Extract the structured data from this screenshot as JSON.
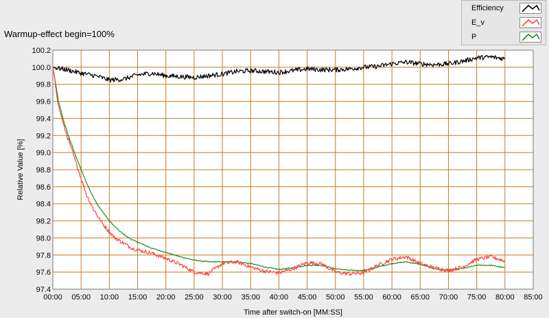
{
  "chart_data": {
    "type": "line",
    "title": "Warmup-effect begin=100%",
    "xlabel": "Time after switch-on [MM:SS]",
    "ylabel": "Relative Value [%]",
    "xlim": [
      0,
      85
    ],
    "ylim": [
      97.4,
      100.2
    ],
    "x_ticks": [
      0,
      5,
      10,
      15,
      20,
      25,
      30,
      35,
      40,
      45,
      50,
      55,
      60,
      65,
      70,
      75,
      80,
      85
    ],
    "x_tick_labels": [
      "00:00",
      "05:00",
      "10:00",
      "15:00",
      "20:00",
      "25:00",
      "30:00",
      "35:00",
      "40:00",
      "45:00",
      "50:00",
      "55:00",
      "60:00",
      "65:00",
      "70:00",
      "75:00",
      "80:00",
      "85:00"
    ],
    "y_ticks": [
      97.4,
      97.6,
      97.8,
      98.0,
      98.2,
      98.4,
      98.6,
      98.8,
      99.0,
      99.2,
      99.4,
      99.6,
      99.8,
      100.0,
      100.2
    ],
    "y_tick_labels": [
      "97.4",
      "97.6",
      "97.8",
      "98.0",
      "98.2",
      "98.4",
      "98.6",
      "98.8",
      "99.0",
      "99.2",
      "99.4",
      "99.6",
      "99.8",
      "100.0",
      "100.2"
    ],
    "grid": true,
    "legend_position": "top-right",
    "background_color": "#ffffff",
    "grid_color": "#c8781e",
    "series": [
      {
        "name": "Efficiency",
        "color": "#000000",
        "x": [
          0,
          2.5,
          5,
          7.5,
          10,
          12.5,
          15,
          17.5,
          20,
          22.5,
          25,
          27.5,
          30,
          32.5,
          35,
          37.5,
          40,
          42.5,
          45,
          47.5,
          50,
          52.5,
          55,
          57.5,
          60,
          62.5,
          65,
          67.5,
          70,
          72.5,
          75,
          77.5,
          80
        ],
        "y": [
          100.0,
          99.97,
          99.93,
          99.9,
          99.85,
          99.86,
          99.91,
          99.93,
          99.9,
          99.89,
          99.88,
          99.9,
          99.92,
          99.95,
          99.96,
          99.95,
          99.94,
          99.96,
          99.98,
          99.97,
          99.97,
          99.98,
          100.0,
          100.01,
          100.04,
          100.06,
          100.04,
          100.03,
          100.04,
          100.07,
          100.11,
          100.12,
          100.1
        ]
      },
      {
        "name": "E_v",
        "color": "#ff4040",
        "x": [
          0,
          1,
          2,
          3,
          4,
          5,
          6,
          7,
          8,
          9,
          10,
          11,
          12,
          13,
          14,
          15,
          17.5,
          20,
          22.5,
          25,
          27.5,
          30,
          32.5,
          35,
          37.5,
          40,
          42.5,
          45,
          47.5,
          50,
          52.5,
          55,
          57.5,
          60,
          62.5,
          65,
          67.5,
          70,
          72.5,
          75,
          77.5,
          80
        ],
        "y": [
          100.0,
          99.55,
          99.3,
          99.1,
          98.9,
          98.7,
          98.5,
          98.36,
          98.25,
          98.15,
          98.07,
          98.0,
          97.96,
          97.92,
          97.88,
          97.86,
          97.82,
          97.76,
          97.69,
          97.6,
          97.58,
          97.7,
          97.72,
          97.66,
          97.61,
          97.59,
          97.64,
          97.71,
          97.7,
          97.6,
          97.58,
          97.59,
          97.68,
          97.75,
          97.78,
          97.7,
          97.65,
          97.62,
          97.66,
          97.75,
          97.78,
          97.73
        ]
      },
      {
        "name": "P",
        "color": "#1e8c1e",
        "x": [
          0,
          1,
          2,
          3,
          4,
          5,
          6,
          7,
          8,
          9,
          10,
          11,
          12,
          13,
          14,
          15,
          17.5,
          20,
          22.5,
          25,
          27.5,
          30,
          32.5,
          35,
          37.5,
          40,
          42.5,
          45,
          47.5,
          50,
          52.5,
          55,
          57.5,
          60,
          62.5,
          65,
          67.5,
          70,
          72.5,
          75,
          77.5,
          80
        ],
        "y": [
          100.0,
          99.6,
          99.35,
          99.15,
          98.97,
          98.8,
          98.64,
          98.5,
          98.38,
          98.29,
          98.2,
          98.13,
          98.07,
          98.02,
          97.98,
          97.95,
          97.88,
          97.83,
          97.78,
          97.74,
          97.72,
          97.72,
          97.72,
          97.7,
          97.66,
          97.63,
          97.65,
          97.68,
          97.68,
          97.64,
          97.62,
          97.62,
          97.66,
          97.7,
          97.72,
          97.69,
          97.64,
          97.62,
          97.64,
          97.68,
          97.68,
          97.65
        ]
      }
    ]
  },
  "legend": {
    "items": [
      {
        "label": "Efficiency",
        "color": "#000000"
      },
      {
        "label": "E_v",
        "color": "#ff4040"
      },
      {
        "label": "P",
        "color": "#1e8c1e"
      }
    ]
  }
}
